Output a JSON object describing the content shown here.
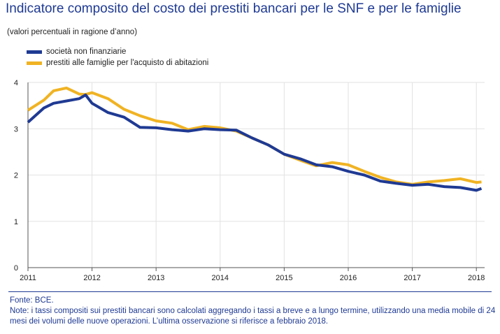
{
  "title": "Indicatore composito del costo dei prestiti bancari per le SNF e per le famiglie",
  "subtitle": "(valori percentuali in ragione d’anno)",
  "footer": {
    "source": "Fonte: BCE.",
    "note": "Note: i tassi compositi sui prestiti bancari sono calcolati aggregando i tassi a breve e a lungo termine, utilizzando una media mobile di 24 mesi dei volumi delle nuove operazioni. L’ultima osservazione si riferisce a febbraio 2018."
  },
  "chart_data": {
    "type": "line",
    "ylim": [
      0,
      4
    ],
    "yticks": [
      "0",
      "1",
      "2",
      "3",
      "4"
    ],
    "xlim": [
      2011,
      2018.15
    ],
    "xticks": [
      "2011",
      "2012",
      "2013",
      "2014",
      "2015",
      "2016",
      "2017",
      "2018"
    ],
    "grid": true,
    "legend": "top-left",
    "x": [
      2011.0,
      2011.25,
      2011.4,
      2011.6,
      2011.8,
      2011.9,
      2012.0,
      2012.25,
      2012.5,
      2012.75,
      2013.0,
      2013.25,
      2013.5,
      2013.75,
      2014.0,
      2014.25,
      2014.5,
      2014.75,
      2015.0,
      2015.25,
      2015.5,
      2015.75,
      2016.0,
      2016.25,
      2016.5,
      2016.75,
      2017.0,
      2017.25,
      2017.5,
      2017.75,
      2018.0,
      2018.08
    ],
    "series": [
      {
        "name": "società non finanziarie",
        "color": "#1f3a93",
        "values": [
          3.14,
          3.45,
          3.55,
          3.6,
          3.65,
          3.73,
          3.55,
          3.35,
          3.25,
          3.03,
          3.02,
          2.98,
          2.95,
          3.0,
          2.98,
          2.97,
          2.8,
          2.65,
          2.45,
          2.35,
          2.22,
          2.18,
          2.08,
          2.0,
          1.87,
          1.82,
          1.78,
          1.8,
          1.75,
          1.73,
          1.67,
          1.71
        ]
      },
      {
        "name": "prestiti alle famiglie per l'acquisto di abitazioni",
        "color": "#f0b323",
        "values": [
          3.4,
          3.62,
          3.82,
          3.88,
          3.75,
          3.74,
          3.78,
          3.65,
          3.42,
          3.28,
          3.17,
          3.12,
          2.98,
          3.05,
          3.02,
          2.95,
          2.8,
          2.65,
          2.45,
          2.32,
          2.2,
          2.27,
          2.22,
          2.08,
          1.95,
          1.85,
          1.8,
          1.85,
          1.88,
          1.92,
          1.84,
          1.85
        ]
      }
    ]
  }
}
